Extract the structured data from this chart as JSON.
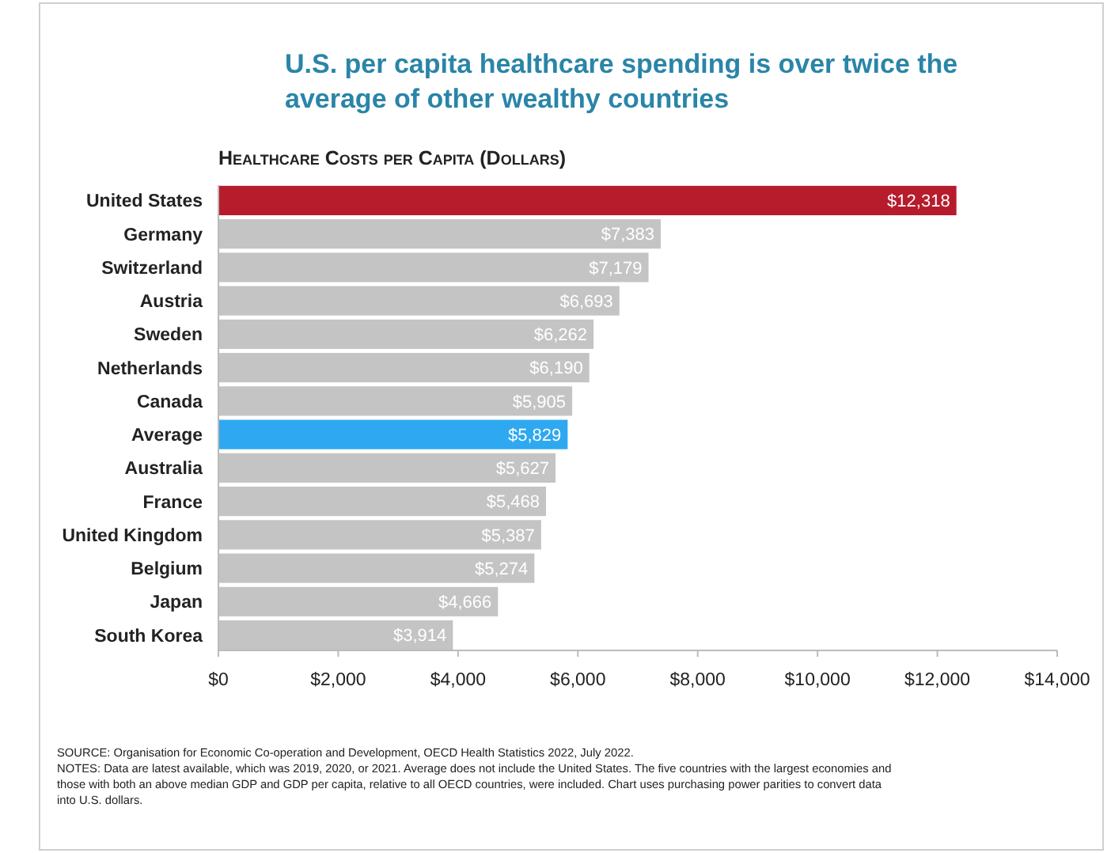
{
  "chart_data": {
    "type": "bar",
    "orientation": "horizontal",
    "title": "U.S. per capita healthcare spending is over twice the average of other wealthy countries",
    "subtitle": "Healthcare Costs per Capita (Dollars)",
    "categories": [
      "United States",
      "Germany",
      "Switzerland",
      "Austria",
      "Sweden",
      "Netherlands",
      "Canada",
      "Average",
      "Australia",
      "France",
      "United Kingdom",
      "Belgium",
      "Japan",
      "South Korea"
    ],
    "values": [
      12318,
      7383,
      7179,
      6693,
      6262,
      6190,
      5905,
      5829,
      5627,
      5468,
      5387,
      5274,
      4666,
      3914
    ],
    "colors": [
      "#b71c2c",
      "#c4c4c4",
      "#c4c4c4",
      "#c4c4c4",
      "#c4c4c4",
      "#c4c4c4",
      "#c4c4c4",
      "#2ea8f0",
      "#c4c4c4",
      "#c4c4c4",
      "#c4c4c4",
      "#c4c4c4",
      "#c4c4c4",
      "#c4c4c4"
    ],
    "value_labels": [
      "$12,318",
      "$7,383",
      "$7,179",
      "$6,693",
      "$6,262",
      "$6,190",
      "$5,905",
      "$5,829",
      "$5,627",
      "$5,468",
      "$5,387",
      "$5,274",
      "$4,666",
      "$3,914"
    ],
    "xlim": [
      0,
      14000
    ],
    "xticks": [
      {
        "value": 0,
        "label": "$0"
      },
      {
        "value": 2000,
        "label": "$2,000"
      },
      {
        "value": 4000,
        "label": "$4,000"
      },
      {
        "value": 6000,
        "label": "$6,000"
      },
      {
        "value": 8000,
        "label": "$8,000"
      },
      {
        "value": 10000,
        "label": "$10,000"
      },
      {
        "value": 12000,
        "label": "$12,000"
      },
      {
        "value": 14000,
        "label": "$14,000"
      }
    ],
    "annotations": [
      "SOURCE: Organisation for Economic Co-operation and Development, OECD Health Statistics 2022, July 2022.",
      "NOTES: Data are latest available, which was 2019, 2020, or 2021. Average does not include the United States. The five countries with the largest economies and those with both an above median GDP and GDP per capita, relative to all OECD countries, were included. Chart uses purchasing power parities to convert data into U.S. dollars."
    ]
  }
}
